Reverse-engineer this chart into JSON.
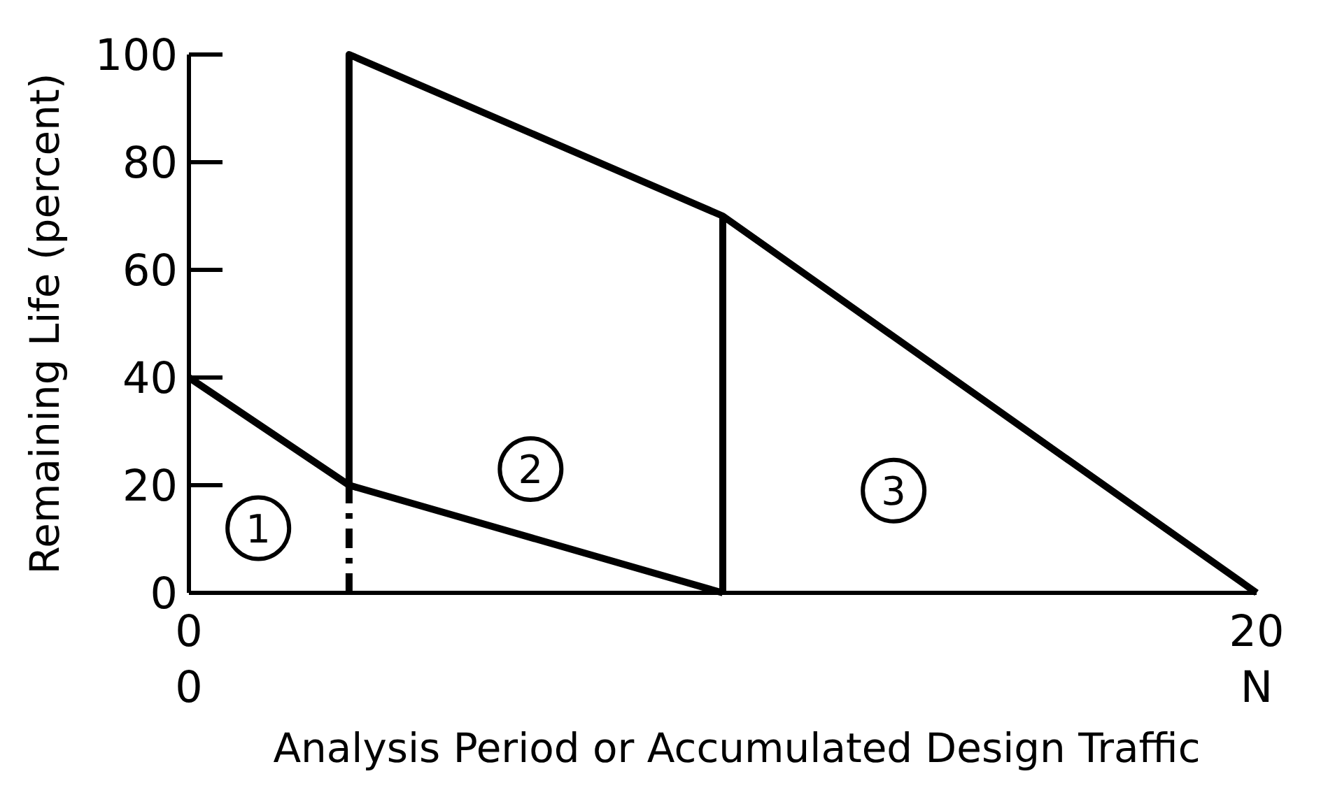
{
  "chart_data": {
    "type": "line",
    "xlabel": "Analysis Period or Accumulated Design Traffic",
    "ylabel": "Remaining Life (percent)",
    "xlim": [
      0,
      20
    ],
    "xticks": [
      0,
      20
    ],
    "ylim": [
      0,
      100
    ],
    "yticks": [
      0,
      20,
      40,
      60,
      80,
      100
    ],
    "grid": false,
    "marker": "none",
    "series": [
      {
        "color": "#000000",
        "x": [
          0,
          3,
          10
        ],
        "values": [
          40,
          20,
          0
        ]
      },
      {
        "color": "#000000",
        "x": [
          3,
          3,
          10,
          20
        ],
        "values": [
          20,
          100,
          70,
          0
        ]
      },
      {
        "color": "#000000",
        "x": [
          10,
          10
        ],
        "values": [
          70,
          0
        ]
      },
      {
        "color": "#000000",
        "x": [
          3,
          3
        ],
        "values": [
          0,
          20
        ],
        "line_style": "dashed"
      }
    ],
    "annotations": [
      {
        "text": "1",
        "x": 1.3,
        "y": 12
      },
      {
        "text": "2",
        "x": 6.4,
        "y": 23
      },
      {
        "text": "3",
        "x": 13.2,
        "y": 19
      },
      "0",
      "N"
    ]
  }
}
